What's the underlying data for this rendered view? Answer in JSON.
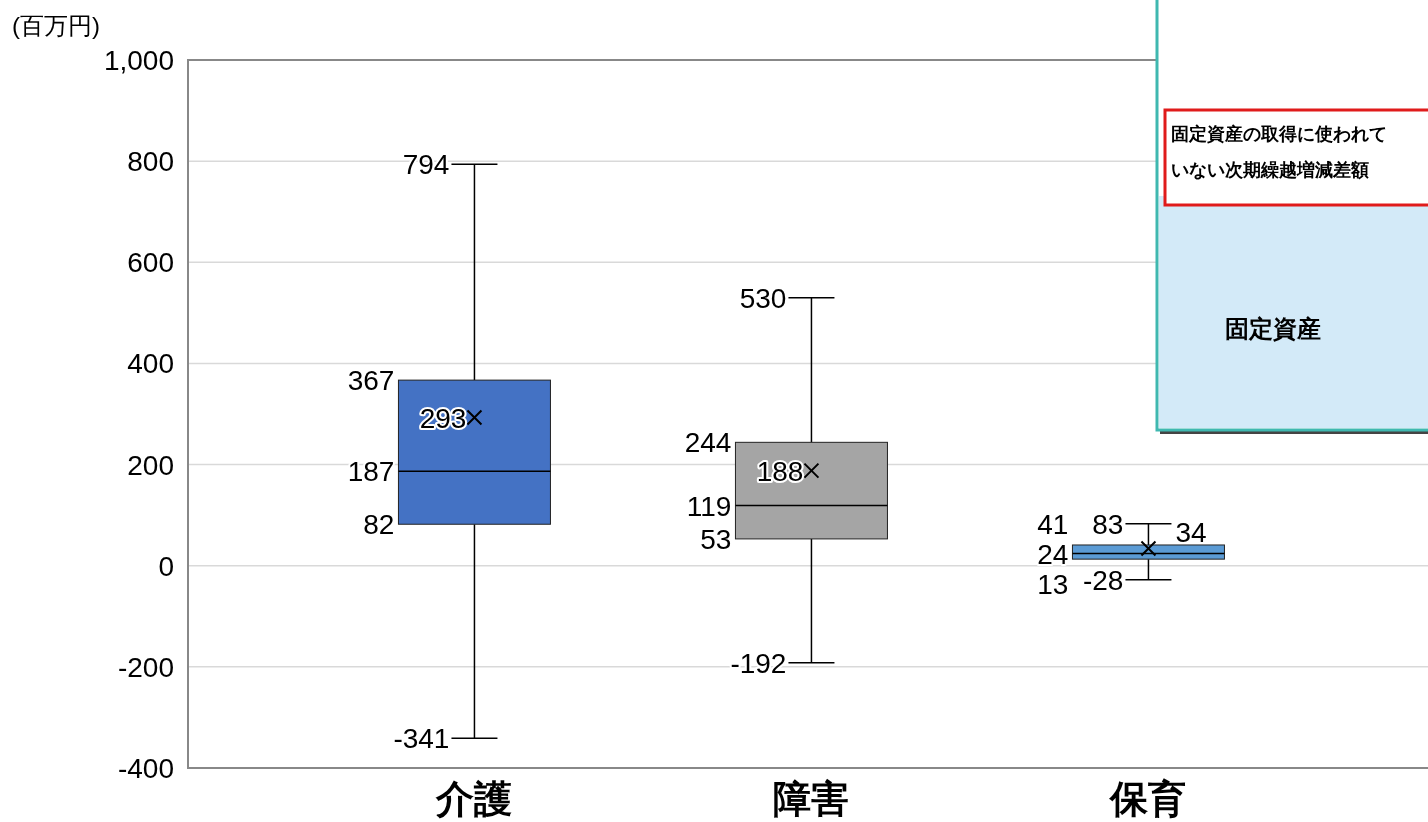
{
  "chart_data": {
    "type": "box",
    "ylabel": "(百万円)",
    "categories": [
      "介護",
      "障害",
      "保育"
    ],
    "colors": [
      "#4472c4",
      "#a5a5a5",
      "#5b9bd5"
    ],
    "boxes": [
      {
        "low": -341,
        "q1": 82,
        "median": 187,
        "q3": 367,
        "high": 794
      },
      {
        "low": -192,
        "q1": 53,
        "median": 119,
        "q3": 244,
        "high": 530
      },
      {
        "low": -28,
        "q1": 13,
        "median": 24,
        "q3": 41,
        "high": 83
      }
    ],
    "series": [
      {
        "type": "scatter",
        "x": [
          "介護",
          "障害",
          "保育"
        ],
        "values": [
          293,
          188,
          34
        ],
        "marker": "cross",
        "color": "#000000"
      }
    ],
    "ylim": [
      -400,
      1000
    ],
    "yticks": [
      -400,
      -200,
      0,
      200,
      400,
      600,
      800,
      {
        "value": 1000,
        "label": "1,000"
      }
    ],
    "grid": "y",
    "annotations": [
      "固定資産の取得に使われていない次期繰越増減差額",
      "固定資産",
      {
        "text": "794",
        "x": "介護",
        "y": 794
      },
      {
        "text": "367",
        "x": "介護",
        "y": 367
      },
      {
        "text": "293",
        "x": "介護",
        "y": 293
      },
      {
        "text": "187",
        "x": "介護",
        "y": 187
      },
      {
        "text": "82",
        "x": "介護",
        "y": 82
      },
      {
        "text": "-341",
        "x": "介護",
        "y": -341
      },
      {
        "text": "530",
        "x": "障害",
        "y": 530
      },
      {
        "text": "244",
        "x": "障害",
        "y": 244
      },
      {
        "text": "188",
        "x": "障害",
        "y": 188
      },
      {
        "text": "119",
        "x": "障害",
        "y": 119
      },
      {
        "text": "53",
        "x": "障害",
        "y": 53
      },
      {
        "text": "-192",
        "x": "障害",
        "y": -192
      },
      {
        "text": "83",
        "x": "保育",
        "y": 83
      },
      {
        "text": "41",
        "x": "保育",
        "y": 41
      },
      {
        "text": "34",
        "x": "保育",
        "y": 34
      },
      {
        "text": "24",
        "x": "保育",
        "y": 24
      },
      {
        "text": "13",
        "x": "保育",
        "y": 13
      },
      {
        "text": "-28",
        "x": "保育",
        "y": -28
      }
    ]
  }
}
